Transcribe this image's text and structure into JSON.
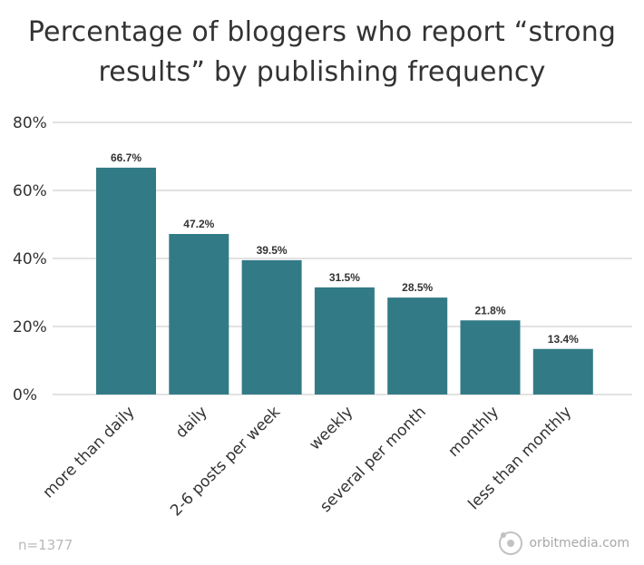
{
  "title_line1": "Percentage of bloggers who report “strong",
  "title_line2": "results” by publishing frequency",
  "footnote": "n=1377",
  "brand": "orbitmedia.com",
  "colors": {
    "bar": "#327b86",
    "grid": "#d9d9d9",
    "axis_text": "#333333",
    "label_text": "#333333"
  },
  "chart_data": {
    "type": "bar",
    "title": "Percentage of bloggers who report “strong results” by publishing frequency",
    "categories": [
      "more than daily",
      "daily",
      "2-6 posts per week",
      "weekly",
      "several per month",
      "monthly",
      "less than monthly"
    ],
    "values": [
      66.7,
      47.2,
      39.5,
      31.5,
      28.5,
      21.8,
      13.4
    ],
    "value_labels": [
      "66.7%",
      "47.2%",
      "39.5%",
      "31.5%",
      "28.5%",
      "21.8%",
      "13.4%"
    ],
    "ylim": [
      0,
      80
    ],
    "yticks": [
      0,
      20,
      40,
      60,
      80
    ],
    "ytick_labels": [
      "0%",
      "20%",
      "40%",
      "60%",
      "80%"
    ],
    "xlabel": "",
    "ylabel": "",
    "grid": true,
    "legend": "none"
  }
}
